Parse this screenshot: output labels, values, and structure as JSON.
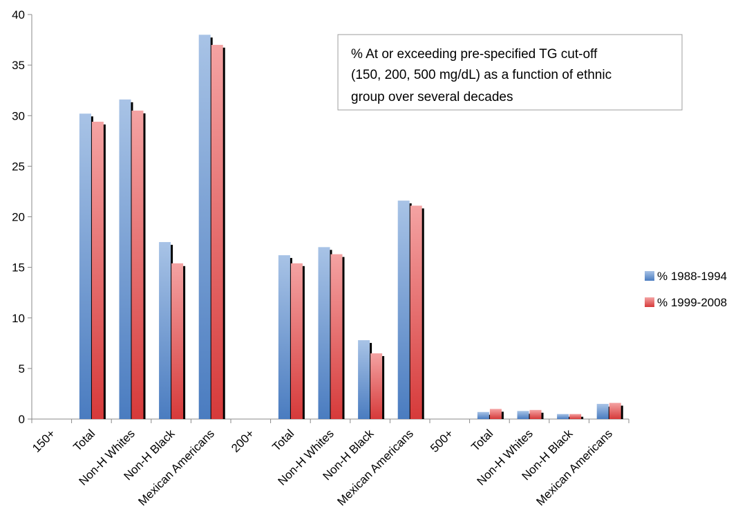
{
  "chart_data": {
    "type": "bar",
    "categories": [
      "150+",
      "Total",
      "Non-H Whites",
      "Non-H Black",
      "Mexican Americans",
      "200+",
      "Total",
      "Non-H Whites",
      "Non-H Black",
      "Mexican Americans",
      "500+",
      "Total",
      "Non-H Whites",
      "Non-H Black",
      "Mexican Americans"
    ],
    "series": [
      {
        "name": "% 1988-1994",
        "values": [
          null,
          30.2,
          31.6,
          17.5,
          38.0,
          null,
          16.2,
          17.0,
          7.8,
          21.6,
          null,
          0.7,
          0.8,
          0.5,
          1.5
        ],
        "color": "#4f81bd"
      },
      {
        "name": "% 1999-2008",
        "values": [
          null,
          29.4,
          30.5,
          15.4,
          37.0,
          null,
          15.4,
          16.3,
          6.5,
          21.1,
          null,
          1.0,
          0.9,
          0.5,
          1.6
        ],
        "color": "#e05a5a"
      }
    ],
    "yticks": [
      "0",
      "5",
      "10",
      "15",
      "20",
      "25",
      "30",
      "35",
      "40"
    ],
    "ylim": [
      0,
      40
    ],
    "annotation": [
      "% At or exceeding pre-specified TG cut-off",
      "(150, 200, 500 mg/dL) as a function of ethnic",
      "group over several decades"
    ],
    "legend_position": "right",
    "grid": false
  }
}
